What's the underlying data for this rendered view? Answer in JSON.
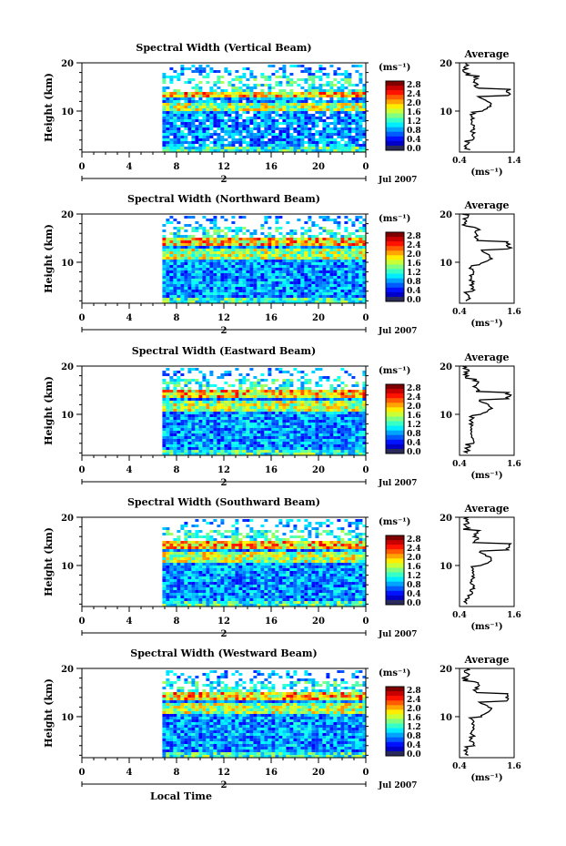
{
  "figure": {
    "xlabel": "Local Time",
    "ylabel": "Height (km)",
    "colorbar_unit": "(ms⁻¹)",
    "colorbar_ticks": [
      "2.8",
      "2.4",
      "2.0",
      "1.6",
      "1.2",
      "0.8",
      "0.4",
      "0.0"
    ],
    "avg_title": "Average",
    "avg_xlabel": "(ms⁻¹)",
    "date_label": "Jul 2007",
    "day_label": "2",
    "x_ticks": [
      "0",
      "4",
      "8",
      "12",
      "16",
      "20",
      "0"
    ],
    "y_ticks": [
      "20",
      "10"
    ]
  },
  "chart_data": [
    {
      "type": "heatmap",
      "title": "Spectral Width (Vertical Beam)",
      "x_range_hours": [
        0,
        24
      ],
      "data_start_hour": 6.8,
      "y_range_km": [
        1.5,
        20
      ],
      "color_range": [
        0,
        3.0
      ],
      "layer_height_km": 13.8,
      "avg_xlim": [
        "0.4",
        "1.4"
      ],
      "avg_peak_km": 13.8
    },
    {
      "type": "heatmap",
      "title": "Spectral Width (Northward Beam)",
      "x_range_hours": [
        0,
        24
      ],
      "data_start_hour": 6.8,
      "y_range_km": [
        1.5,
        20
      ],
      "color_range": [
        0,
        3.0
      ],
      "layer_height_km": 14.5,
      "avg_xlim": [
        "0.4",
        "1.6"
      ],
      "avg_peak_km": 13.5
    },
    {
      "type": "heatmap",
      "title": "Spectral Width (Eastward Beam)",
      "x_range_hours": [
        0,
        24
      ],
      "data_start_hour": 6.8,
      "y_range_km": [
        1.5,
        20
      ],
      "color_range": [
        0,
        3.0
      ],
      "layer_height_km": 14.5,
      "avg_xlim": [
        "0.4",
        "1.6"
      ],
      "avg_peak_km": 13.8
    },
    {
      "type": "heatmap",
      "title": "Spectral Width (Southward Beam)",
      "x_range_hours": [
        0,
        24
      ],
      "data_start_hour": 6.8,
      "y_range_km": [
        1.5,
        20
      ],
      "color_range": [
        0,
        3.0
      ],
      "layer_height_km": 14.5,
      "avg_xlim": [
        "0.4",
        "1.6"
      ],
      "avg_peak_km": 13.8
    },
    {
      "type": "heatmap",
      "title": "Spectral Width (Westward Beam)",
      "x_range_hours": [
        0,
        24
      ],
      "data_start_hour": 6.8,
      "y_range_km": [
        1.5,
        20
      ],
      "color_range": [
        0,
        3.0
      ],
      "layer_height_km": 14.5,
      "avg_xlim": [
        "0.4",
        "1.6"
      ],
      "avg_peak_km": 14.0
    }
  ]
}
